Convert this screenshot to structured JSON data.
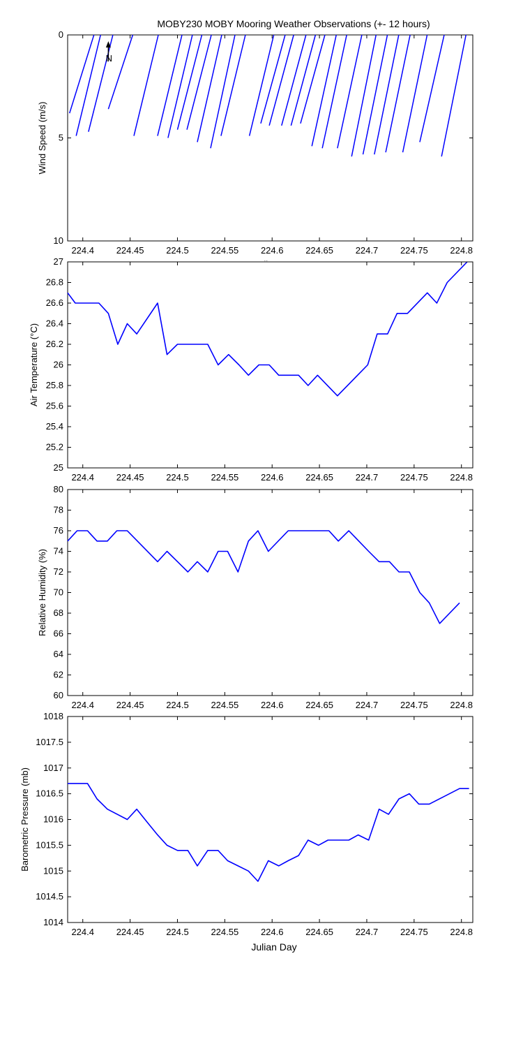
{
  "title": "MOBY230 MOBY Mooring Weather Observations (+- 12 hours)",
  "colors": {
    "line": "#0000ff",
    "axes": "#000000",
    "background": "#ffffff"
  },
  "chart_data": [
    {
      "type": "line",
      "subtype": "wind-stick",
      "ylabel": "Wind Speed (m/s)",
      "xlabel": "Julian Day",
      "xlabel_partially_hidden": true,
      "north_marker": "N",
      "y_reversed": true,
      "ylim": [
        0,
        10
      ],
      "xlim": [
        224.384,
        224.812
      ],
      "yticks": [
        "0",
        "5",
        "10"
      ],
      "xticks": [
        "224.4",
        "224.45",
        "224.5",
        "224.55",
        "224.6",
        "224.65",
        "224.7",
        "224.75",
        "224.8"
      ],
      "series": [
        {
          "x": [
            224.386,
            224.393,
            224.406,
            224.427,
            224.454,
            224.479,
            224.49,
            224.5,
            224.51,
            224.521,
            224.535,
            224.546,
            224.576,
            224.588,
            224.597,
            224.61,
            224.62,
            224.63,
            224.642,
            224.653,
            224.669,
            224.684,
            224.696,
            224.708,
            224.72,
            224.738,
            224.756,
            224.779
          ],
          "speed": [
            3.8,
            4.9,
            4.7,
            3.6,
            4.9,
            4.9,
            5.0,
            4.6,
            4.6,
            5.2,
            5.5,
            4.9,
            4.9,
            4.3,
            4.4,
            4.4,
            4.4,
            4.3,
            5.4,
            5.5,
            5.5,
            5.9,
            5.8,
            5.8,
            5.7,
            5.7,
            5.2,
            5.9
          ]
        }
      ]
    },
    {
      "type": "line",
      "ylabel": "Air Temperature (°C)",
      "ylim": [
        25,
        27
      ],
      "xlim": [
        224.384,
        224.812
      ],
      "yticks": [
        "25",
        "25.2",
        "25.4",
        "25.6",
        "25.8",
        "26",
        "26.2",
        "26.4",
        "26.6",
        "26.8",
        "27"
      ],
      "xticks": [
        "224.4",
        "224.45",
        "224.5",
        "224.55",
        "224.6",
        "224.65",
        "224.7",
        "224.75",
        "224.8"
      ],
      "series": [
        {
          "x": [
            224.384,
            224.392,
            224.417,
            224.427,
            224.437,
            224.447,
            224.457,
            224.479,
            224.489,
            224.5,
            224.532,
            224.543,
            224.554,
            224.565,
            224.575,
            224.586,
            224.597,
            224.607,
            224.628,
            224.638,
            224.648,
            224.669,
            224.701,
            224.711,
            224.722,
            224.732,
            224.743,
            224.764,
            224.774,
            224.785,
            224.806
          ],
          "y": [
            26.7,
            26.6,
            26.6,
            26.5,
            26.2,
            26.4,
            26.3,
            26.6,
            26.1,
            26.2,
            26.2,
            26.0,
            26.1,
            26.0,
            25.9,
            26.0,
            26.0,
            25.9,
            25.9,
            25.8,
            25.9,
            25.7,
            26.0,
            26.3,
            26.3,
            26.5,
            26.5,
            26.7,
            26.6,
            26.8,
            27.0
          ]
        }
      ]
    },
    {
      "type": "line",
      "ylabel": "Relative Humidity (%)",
      "ylim": [
        60,
        80
      ],
      "xlim": [
        224.384,
        224.812
      ],
      "yticks": [
        "60",
        "62",
        "64",
        "66",
        "68",
        "70",
        "72",
        "74",
        "76",
        "78",
        "80"
      ],
      "xticks": [
        "224.4",
        "224.45",
        "224.5",
        "224.55",
        "224.6",
        "224.65",
        "224.7",
        "224.75",
        "224.8"
      ],
      "series": [
        {
          "x": [
            224.384,
            224.394,
            224.405,
            224.415,
            224.426,
            224.436,
            224.447,
            224.479,
            224.489,
            224.511,
            224.521,
            224.532,
            224.543,
            224.553,
            224.564,
            224.575,
            224.585,
            224.596,
            224.617,
            224.66,
            224.67,
            224.681,
            224.702,
            224.713,
            224.724,
            224.734,
            224.745,
            224.756,
            224.766,
            224.777,
            224.798
          ],
          "y": [
            75,
            76,
            76,
            75,
            75,
            76,
            76,
            73,
            74,
            72,
            73,
            72,
            74,
            74,
            72,
            75,
            76,
            74,
            76,
            76,
            75,
            76,
            74,
            73,
            73,
            72,
            72,
            70,
            69,
            67,
            69
          ]
        }
      ]
    },
    {
      "type": "line",
      "ylabel": "Barometric Pressure (mb)",
      "xlabel": "Julian Day",
      "ylim": [
        1014,
        1018
      ],
      "xlim": [
        224.384,
        224.812
      ],
      "yticks": [
        "1014",
        "1014.5",
        "1015",
        "1015.5",
        "1016",
        "1016.5",
        "1017",
        "1017.5",
        "1018"
      ],
      "xticks": [
        "224.4",
        "224.45",
        "224.5",
        "224.55",
        "224.6",
        "224.65",
        "224.7",
        "224.75",
        "224.8"
      ],
      "series": [
        {
          "x": [
            224.384,
            224.405,
            224.415,
            224.426,
            224.447,
            224.457,
            224.468,
            224.479,
            224.489,
            224.5,
            224.511,
            224.521,
            224.532,
            224.543,
            224.553,
            224.564,
            224.575,
            224.585,
            224.596,
            224.607,
            224.617,
            224.628,
            224.638,
            224.649,
            224.659,
            224.681,
            224.691,
            224.702,
            224.713,
            224.723,
            224.734,
            224.745,
            224.755,
            224.766,
            224.798,
            224.808
          ],
          "y": [
            1016.7,
            1016.7,
            1016.4,
            1016.2,
            1016.0,
            1016.2,
            1015.95,
            1015.7,
            1015.5,
            1015.4,
            1015.4,
            1015.1,
            1015.4,
            1015.4,
            1015.2,
            1015.1,
            1015.0,
            1014.8,
            1015.2,
            1015.1,
            1015.2,
            1015.3,
            1015.6,
            1015.5,
            1015.6,
            1015.6,
            1015.7,
            1015.6,
            1016.2,
            1016.1,
            1016.4,
            1016.5,
            1016.3,
            1016.3,
            1016.6,
            1016.6
          ]
        }
      ]
    }
  ]
}
